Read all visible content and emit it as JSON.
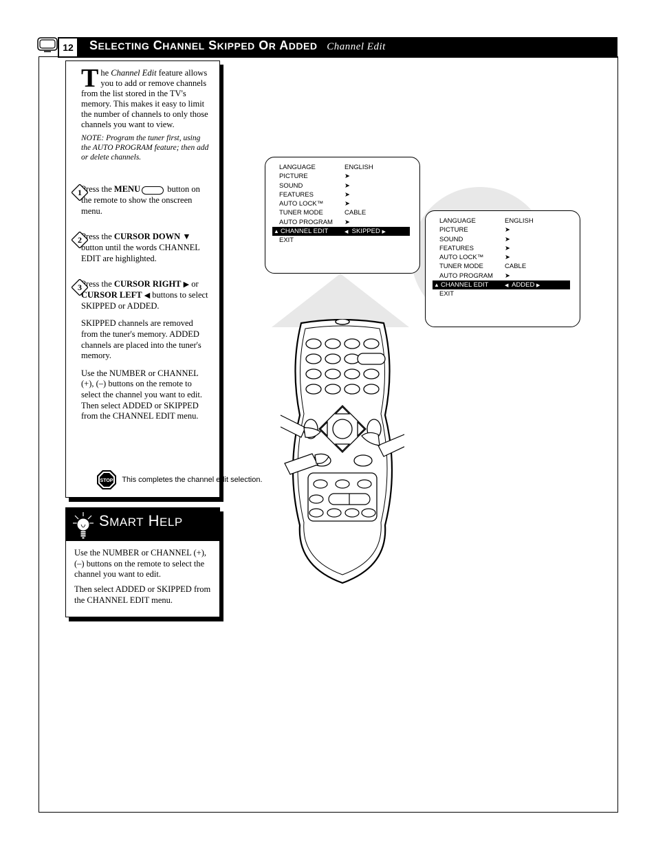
{
  "header": {
    "page_number": "12",
    "title_main": "S",
    "title_small": "ELECTING",
    "title_tv": " C",
    "title_tv_small": "HANNEL",
    "title_rest": " S",
    "title_rest_small": "KIPPED",
    "title_or": " O",
    "title_or_small": "R",
    "title_a": " A",
    "title_a_small": "DDED",
    "subtitle_i": "Channel Edit"
  },
  "intro": {
    "p1a": "he ",
    "p1b": "Channel Edit",
    "p1c": " feature allows you to add or remove channels from the list stored in the TV's memory. This makes it easy to limit the number of channels to only those channels you want to view.",
    "note": "NOTE: Program the tuner first, using the AUTO PROGRAM feature; then add or delete channels."
  },
  "steps": {
    "s1a": "Press the ",
    "s1b": "MENU",
    "s1c": " button on the remote to show the onscreen menu.",
    "s2a": "Press the ",
    "s2b": "CURSOR DOWN",
    "s2c": " button until the words CHANNEL EDIT are highlighted.",
    "s3a": "Press the ",
    "s3b": "CURSOR RIGHT",
    "s3c": " or ",
    "s3d": "CURSOR LEFT",
    "s3e": " buttons to select SKIPPED or ADDED.",
    "s3_mid": "SKIPPED channels are removed from the tuner's memory. ADDED channels are placed into the tuner's memory.",
    "s3_last": "Use the NUMBER or CHANNEL (+), (–) buttons on the remote to select the channel you want to edit. Then select ADDED or SKIPPED from the CHANNEL EDIT menu."
  },
  "stop_label": "This completes the channel edit selection.",
  "help": {
    "title_big": "S",
    "title_small": "MART",
    "title_big2": " H",
    "title_small2": "ELP",
    "line1": "Use the NUMBER or CHANNEL (+), (–) buttons on the remote to select the channel you want to edit.",
    "line2": "Then select ADDED or SKIPPED from the CHANNEL EDIT menu."
  },
  "osd": {
    "menu": [
      {
        "l": "LANGUAGE",
        "r": "ENGLISH"
      },
      {
        "l": "PICTURE",
        "r": "➤"
      },
      {
        "l": "SOUND",
        "r": "➤"
      },
      {
        "l": "FEATURES",
        "r": "➤"
      },
      {
        "l": "AUTO LOCK™",
        "r": "➤"
      },
      {
        "l": "TUNER MODE",
        "r": "CABLE"
      },
      {
        "l": "AUTO PROGRAM",
        "r": "➤"
      },
      {
        "l": "CHANNEL EDIT",
        "r": "SKIPPED",
        "inv": true
      },
      {
        "l": "EXIT",
        "r": ""
      }
    ],
    "menu2_r": "ADDED"
  },
  "colors": {
    "bg": "#ffffff",
    "ink": "#000000",
    "halo": "#e8e8e8"
  }
}
